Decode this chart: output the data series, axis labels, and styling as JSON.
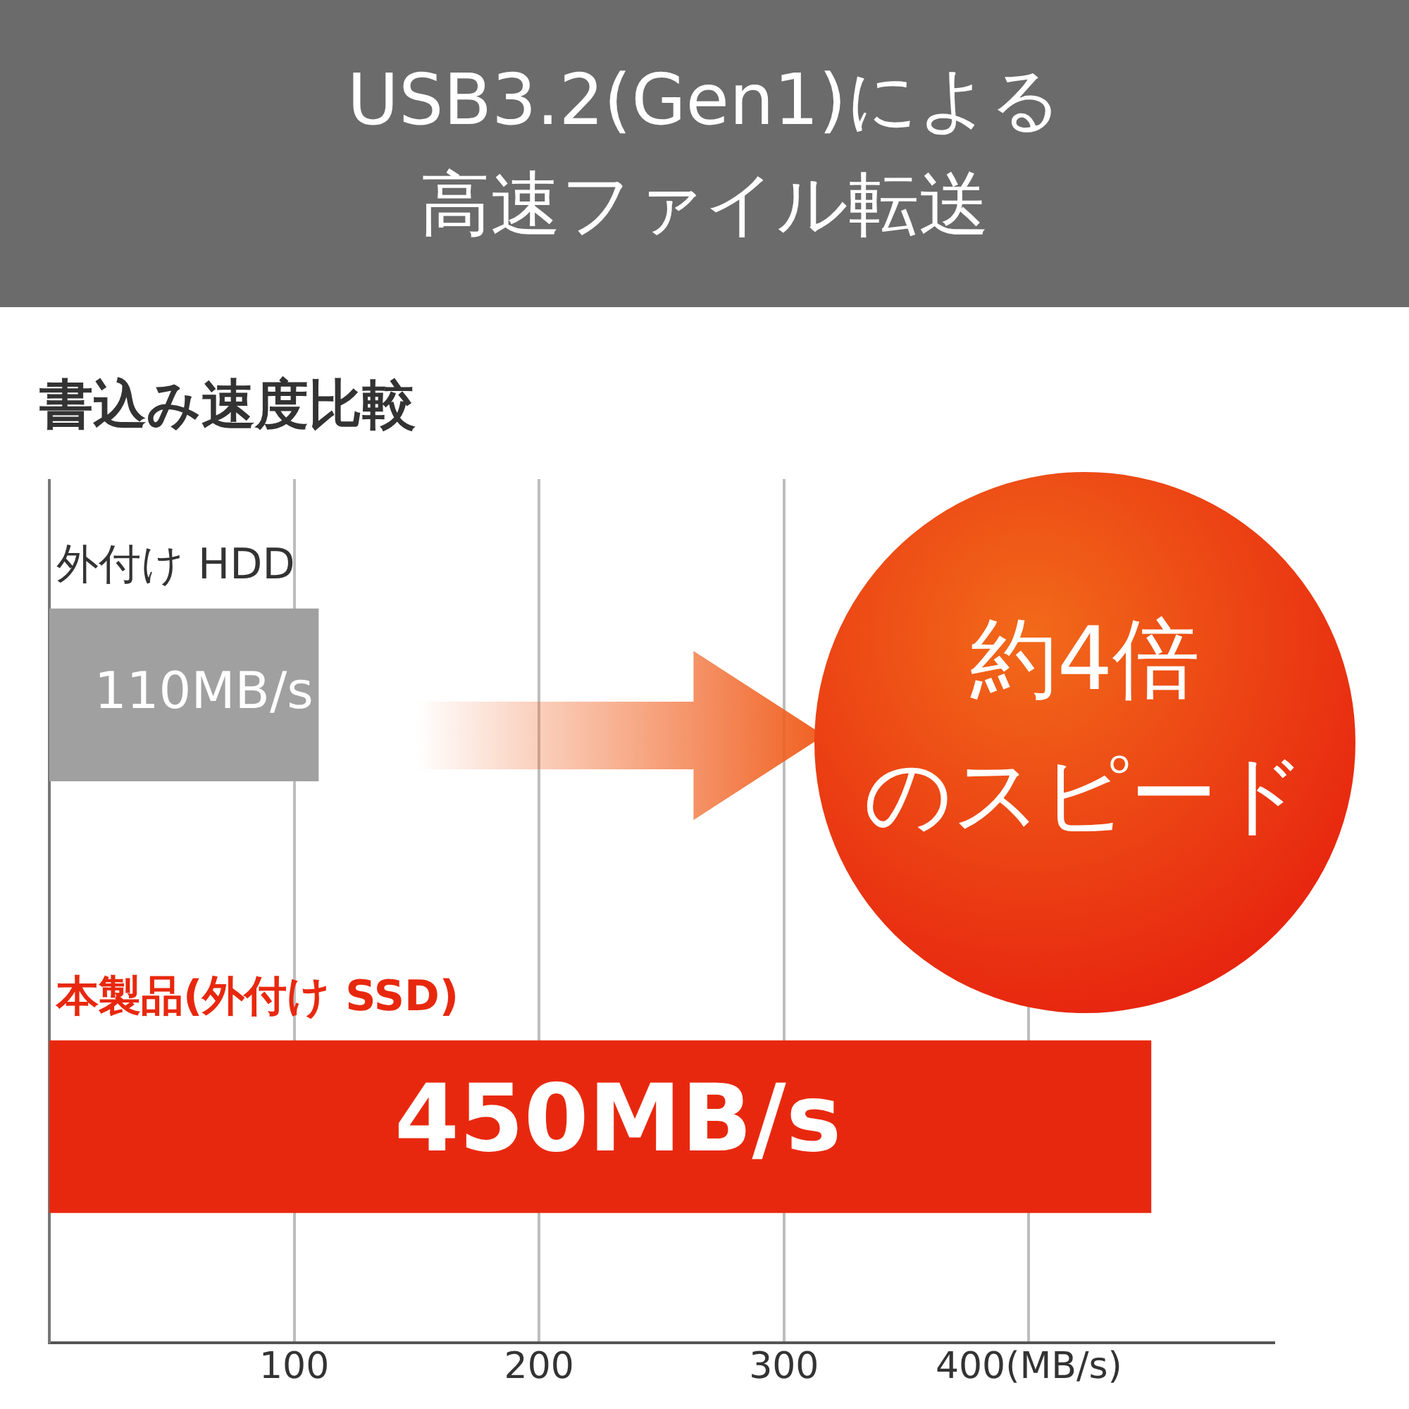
{
  "chart_data": {
    "type": "bar",
    "orientation": "horizontal",
    "title": "USB3.2(Gen1)による高速ファイル転送",
    "subtitle": "書込み速度比較",
    "categories": [
      "外付け HDD",
      "本製品(外付け SSD)"
    ],
    "values": [
      110,
      450
    ],
    "colors": [
      "#a0a0a0",
      "#e8280e"
    ],
    "value_labels": [
      "110MB/s",
      "450MB/s"
    ],
    "xlim": [
      0,
      500
    ],
    "xticks": [
      100,
      200,
      300,
      {
        "value": 400,
        "label": "400(MB/s)"
      }
    ],
    "grid": "x",
    "legend": false,
    "annotations": [
      "約4倍",
      "のスピード"
    ]
  }
}
